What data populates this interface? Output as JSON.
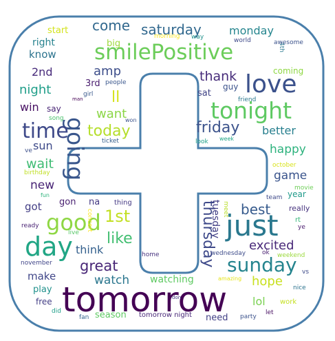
{
  "word_cloud": {
    "mask_shape": "plus-in-rounded-square",
    "outline_color": "#4a7fab",
    "words": [
      {
        "text": "tomorrow",
        "color": "#440154"
      },
      {
        "text": "smilePositive",
        "color": "#6ccd5a"
      },
      {
        "text": "just",
        "color": "#2a788e"
      },
      {
        "text": "going",
        "color": "#39568c"
      },
      {
        "text": "love",
        "color": "#3b518b"
      },
      {
        "text": "tonight",
        "color": "#5ec962"
      },
      {
        "text": "day",
        "color": "#21a685"
      },
      {
        "text": "good",
        "color": "#8fd744"
      },
      {
        "text": "time",
        "color": "#3e4989"
      },
      {
        "text": "sunday",
        "color": "#25848e"
      },
      {
        "text": "saturday",
        "color": "#31688e"
      },
      {
        "text": "friday",
        "color": "#3b528b"
      },
      {
        "text": "today",
        "color": "#b5de2b"
      },
      {
        "text": "thursday",
        "color": "#3e4989"
      },
      {
        "text": "like",
        "color": "#42be71"
      },
      {
        "text": "great",
        "color": "#482677"
      },
      {
        "text": "1st",
        "color": "#c2df23"
      },
      {
        "text": "excited",
        "color": "#482878"
      },
      {
        "text": "best",
        "color": "#375b8d"
      },
      {
        "text": "happy",
        "color": "#2db27d"
      },
      {
        "text": "monday",
        "color": "#25858e"
      },
      {
        "text": "come",
        "color": "#31688e"
      },
      {
        "text": "night",
        "color": "#1f9e89"
      },
      {
        "text": "amp",
        "color": "#3d4e8a"
      },
      {
        "text": "ll",
        "color": "#d5e21a"
      },
      {
        "text": "thank",
        "color": "#472c7a"
      },
      {
        "text": "wait",
        "color": "#3fbc73"
      },
      {
        "text": "want",
        "color": "#8bd646"
      },
      {
        "text": "new",
        "color": "#482475"
      },
      {
        "text": "hope",
        "color": "#c8e020"
      },
      {
        "text": "watch",
        "color": "#2a768e"
      },
      {
        "text": "make",
        "color": "#404688"
      },
      {
        "text": "think",
        "color": "#34608d"
      },
      {
        "text": "game",
        "color": "#3a548c"
      },
      {
        "text": "better",
        "color": "#277f8e"
      },
      {
        "text": "win",
        "color": "#471063"
      },
      {
        "text": "sun",
        "color": "#3e4a89"
      },
      {
        "text": "know",
        "color": "#2c738e"
      },
      {
        "text": "2nd",
        "color": "#472a7a"
      },
      {
        "text": "lol",
        "color": "#7ad151"
      },
      {
        "text": "got",
        "color": "#433e85"
      },
      {
        "text": "watching",
        "color": "#5ec962"
      },
      {
        "text": "tuesday",
        "color": "#424086"
      },
      {
        "text": "season",
        "color": "#5ec962"
      },
      {
        "text": "need",
        "color": "#424186"
      },
      {
        "text": "right",
        "color": "#26828e"
      },
      {
        "text": "start",
        "color": "#d2e21b"
      },
      {
        "text": "big",
        "color": "#9dd93b"
      },
      {
        "text": "gon",
        "color": "#481f70"
      },
      {
        "text": "na",
        "color": "#443983"
      },
      {
        "text": "play",
        "color": "#21918c"
      },
      {
        "text": "free",
        "color": "#433e85"
      },
      {
        "text": "year",
        "color": "#1f9a8a"
      },
      {
        "text": "coming",
        "color": "#8fd744"
      },
      {
        "text": "sat",
        "color": "#414487"
      },
      {
        "text": "3rd",
        "color": "#481b6d"
      },
      {
        "text": "say",
        "color": "#482475"
      },
      {
        "text": "guy",
        "color": "#3b528b"
      },
      {
        "text": "really",
        "color": "#46337e"
      },
      {
        "text": "thing",
        "color": "#443983"
      },
      {
        "text": "people",
        "color": "#39568c"
      },
      {
        "text": "girl",
        "color": "#38598c"
      },
      {
        "text": "friend",
        "color": "#2a778e"
      },
      {
        "text": "man",
        "color": "#440154"
      },
      {
        "text": "song",
        "color": "#4ac16d"
      },
      {
        "text": "won",
        "color": "#3b528b"
      },
      {
        "text": "ticket",
        "color": "#355e8d"
      },
      {
        "text": "look",
        "color": "#1fa088"
      },
      {
        "text": "week",
        "color": "#20a486"
      },
      {
        "text": "ve",
        "color": "#3c4f8a"
      },
      {
        "text": "birthday",
        "color": "#c0df25"
      },
      {
        "text": "fun",
        "color": "#2eb37c"
      },
      {
        "text": "ready",
        "color": "#482173"
      },
      {
        "text": "live",
        "color": "#56c667"
      },
      {
        "text": "concert",
        "color": "#fde725"
      },
      {
        "text": "home",
        "color": "#46327e"
      },
      {
        "text": "team",
        "color": "#3e4989"
      },
      {
        "text": "movie",
        "color": "#6ece58"
      },
      {
        "text": "october",
        "color": "#d8e219"
      },
      {
        "text": "wednesday",
        "color": "#3e4c8a"
      },
      {
        "text": "ok",
        "color": "#481f70"
      },
      {
        "text": "weekend",
        "color": "#9bd93c"
      },
      {
        "text": "november",
        "color": "#404588"
      },
      {
        "text": "rt",
        "color": "#35b779"
      },
      {
        "text": "ye",
        "color": "#481a6c"
      },
      {
        "text": "meet",
        "color": "#b8de29"
      },
      {
        "text": "amazing",
        "color": "#e5e419"
      },
      {
        "text": "vs",
        "color": "#3e4a89"
      },
      {
        "text": "nice",
        "color": "#2c728e"
      },
      {
        "text": "work",
        "color": "#c5e021"
      },
      {
        "text": "don",
        "color": "#453781"
      },
      {
        "text": "did",
        "color": "#1f9e89"
      },
      {
        "text": "fan",
        "color": "#33638d"
      },
      {
        "text": "tomorrow night",
        "color": "#482878"
      },
      {
        "text": "party",
        "color": "#3b528b"
      },
      {
        "text": "let",
        "color": "#470e61"
      },
      {
        "text": "morning",
        "color": "#fde725"
      },
      {
        "text": "way",
        "color": "#21918c"
      },
      {
        "text": "world",
        "color": "#3e4989"
      },
      {
        "text": "4th",
        "color": "#2a788e"
      },
      {
        "text": "awesome",
        "color": "#3b528b"
      }
    ]
  }
}
